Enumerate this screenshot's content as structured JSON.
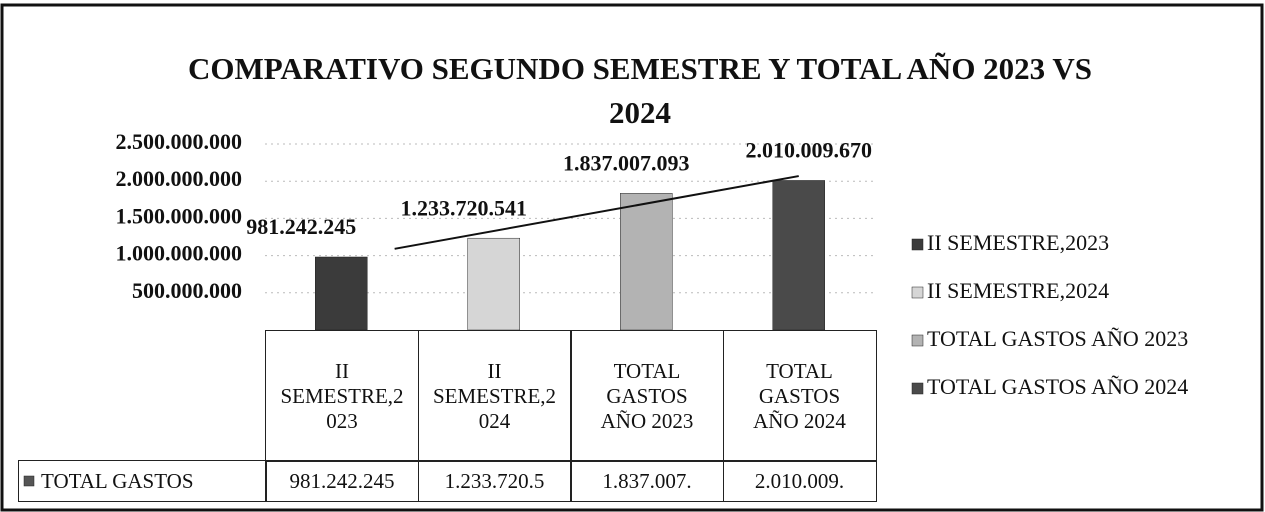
{
  "chart_data": {
    "type": "bar",
    "title": "COMPARATIVO SEGUNDO SEMESTRE Y TOTAL AÑO 2023 VS 2024",
    "categories": [
      "II SEMESTRE,2023",
      "II SEMESTRE,2024",
      "TOTAL GASTOS AÑO 2023",
      "TOTAL GASTOS AÑO 2024"
    ],
    "values": [
      981242245,
      1233720541,
      1837007093,
      2010009670
    ],
    "value_labels": [
      "981.242.245",
      "1.233.720.541",
      "1.837.007.093",
      "2.010.009.670"
    ],
    "colors": [
      "#3b3b3b",
      "#d6d6d6",
      "#b3b3b3",
      "#4a4a4a"
    ],
    "ylim": [
      0,
      2500000000
    ],
    "yticks": [
      {
        "value": 500000000,
        "label": "500.000.000"
      },
      {
        "value": 1000000000,
        "label": "1.000.000.000"
      },
      {
        "value": 1500000000,
        "label": "1.500.000.000"
      },
      {
        "value": 2000000000,
        "label": "2.000.000.000"
      },
      {
        "value": 2500000000,
        "label": "2.500.000.000"
      }
    ],
    "grid": true,
    "trendline": true,
    "legend": "right",
    "data_table": {
      "row_name": "TOTAL GASTOS",
      "cells": [
        "981.242.245",
        "1.233.720.5",
        "1.837.007.",
        "2.010.009."
      ]
    }
  }
}
